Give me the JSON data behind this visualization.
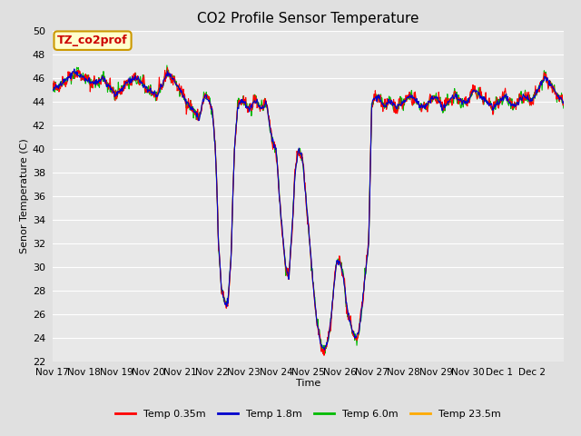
{
  "title": "CO2 Profile Sensor Temperature",
  "ylabel": "Senor Temperature (C)",
  "xlabel": "Time",
  "annotation_text": "TZ_co2prof",
  "annotation_bg": "#ffffcc",
  "annotation_border": "#cc9900",
  "annotation_text_color": "#cc0000",
  "ylim": [
    22,
    50
  ],
  "yticks": [
    22,
    24,
    26,
    28,
    30,
    32,
    34,
    36,
    38,
    40,
    42,
    44,
    46,
    48,
    50
  ],
  "bg_color": "#e0e0e0",
  "plot_bg": "#e8e8e8",
  "grid_color": "#ffffff",
  "colors": {
    "Temp 0.35m": "#ff0000",
    "Temp 1.8m": "#0000cc",
    "Temp 6.0m": "#00bb00",
    "Temp 23.5m": "#ffaa00"
  },
  "linewidth": 0.8,
  "xtick_labels": [
    "Nov 17",
    "Nov 18",
    "Nov 19",
    "Nov 20",
    "Nov 21",
    "Nov 22",
    "Nov 23",
    "Nov 24",
    "Nov 25",
    "Nov 26",
    "Nov 27",
    "Nov 28",
    "Nov 29",
    "Nov 30",
    "Dec 1",
    "Dec 2"
  ],
  "title_fontsize": 11,
  "axis_fontsize": 8,
  "legend_fontsize": 8
}
